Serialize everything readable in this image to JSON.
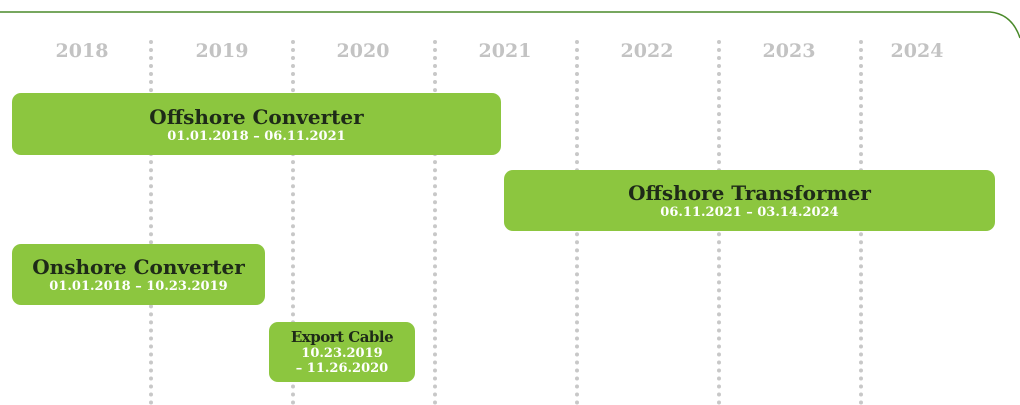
{
  "years": [
    "2018",
    "2019",
    "2020",
    "2021",
    "2022",
    "2023",
    "2024"
  ],
  "tasks": [
    {
      "name": "Offshore Converter",
      "dates": [
        "01.01.2018 – 06.11.2021"
      ]
    },
    {
      "name": "Offshore Transformer",
      "dates": [
        "06.11.2021 – 03.14.2024"
      ]
    },
    {
      "name": "Onshore Converter",
      "dates": [
        "01.01.2018 – 10.23.2019"
      ]
    },
    {
      "name": "Export Cable",
      "dates": [
        "10.23.2019",
        "– 11.26.2020"
      ]
    }
  ]
}
